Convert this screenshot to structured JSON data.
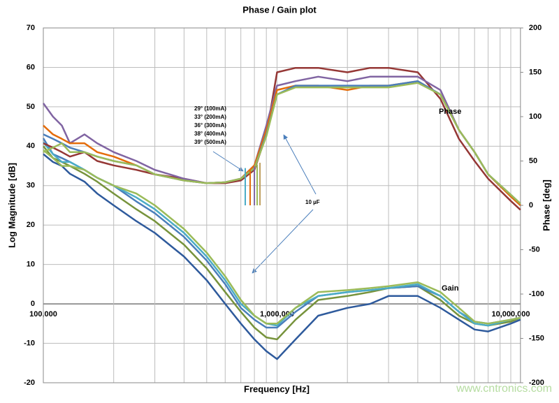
{
  "chart_data": {
    "type": "line",
    "title": "Phase / Gain plot",
    "x_label": "Frequency [Hz]",
    "y_label": "Log Magnitude [dB]",
    "y2_label": "Phase [deg]",
    "log_x": true,
    "grid": true,
    "xlim": [
      100000,
      11000000
    ],
    "xticks": [
      {
        "value": 100000,
        "label": "100,000"
      },
      {
        "value": 1000000,
        "label": "1,000,000"
      },
      {
        "value": 10000000,
        "label": "10,000,000"
      }
    ],
    "xgrid_minor": [
      200000,
      300000,
      400000,
      500000,
      600000,
      700000,
      800000,
      900000,
      2000000,
      3000000,
      4000000,
      5000000,
      6000000,
      7000000,
      8000000,
      9000000
    ],
    "ylim": [
      -20,
      70
    ],
    "yticks": [
      -20,
      -10,
      0,
      10,
      20,
      30,
      40,
      50,
      60,
      70
    ],
    "y2lim": [
      -200,
      200
    ],
    "y2ticks": [
      -200,
      -150,
      -100,
      -50,
      0,
      50,
      100,
      150,
      200
    ],
    "x": [
      100000,
      110000,
      120000,
      130000,
      150000,
      170000,
      200000,
      250000,
      300000,
      400000,
      500000,
      600000,
      700000,
      800000,
      900000,
      1000000,
      1200000,
      1500000,
      2000000,
      2500000,
      3000000,
      4000000,
      5000000,
      6000000,
      7000000,
      8000000,
      10000000,
      11000000
    ],
    "series": [
      {
        "color": "#2e5a9c",
        "values": [
          38,
          36,
          35,
          33,
          31,
          28,
          25,
          21,
          18,
          12,
          6,
          0,
          -5,
          -9,
          -12,
          -14,
          -9,
          -3,
          -1,
          0,
          2,
          2,
          -1,
          -4,
          -6.5,
          -7,
          -5,
          -4
        ]
      },
      {
        "color": "#77933c",
        "values": [
          40,
          37,
          36,
          35,
          33,
          31,
          28,
          24,
          21,
          15,
          9,
          3,
          -2,
          -6,
          -8.5,
          -9,
          -4,
          1,
          2,
          3,
          4,
          4.5,
          1,
          -3,
          -5,
          -5.5,
          -4.5,
          -3.5
        ]
      },
      {
        "color": "#4a7ebb",
        "values": [
          42,
          38,
          37,
          36,
          34,
          32,
          30,
          26,
          23,
          17,
          11,
          5,
          -1,
          -4,
          -6,
          -6,
          -2,
          2,
          3,
          3.5,
          4,
          4.5,
          2,
          -2,
          -4.5,
          -5,
          -4,
          -3.5
        ]
      },
      {
        "color": "#4bacc6",
        "values": [
          41,
          38,
          36,
          36,
          34,
          32,
          30,
          27,
          24,
          18,
          12,
          6,
          0,
          -3,
          -5,
          -5.5,
          -1,
          2,
          3,
          3.5,
          4,
          5,
          2,
          -2,
          -5,
          -5.5,
          -4,
          -3.5
        ]
      },
      {
        "color": "#9bbb59",
        "values": [
          39,
          37,
          35,
          35,
          34,
          32,
          30,
          28,
          25,
          19,
          13,
          7,
          1,
          -3,
          -5,
          -5,
          -1,
          3,
          3.5,
          4,
          4.5,
          5.5,
          3,
          -1,
          -4.5,
          -5,
          -4,
          -3.5
        ]
      },
      {
        "color": "#953735",
        "axis": "y2",
        "values": [
          70,
          65,
          60,
          55,
          60,
          50,
          45,
          40,
          35,
          30,
          25,
          25,
          28,
          40,
          80,
          150,
          155,
          155,
          150,
          155,
          155,
          150,
          120,
          75,
          50,
          30,
          5,
          -5
        ]
      },
      {
        "color": "#8064a2",
        "axis": "y2",
        "values": [
          115,
          100,
          90,
          70,
          80,
          70,
          60,
          50,
          40,
          30,
          25,
          26,
          30,
          45,
          90,
          135,
          140,
          145,
          140,
          145,
          145,
          145,
          130,
          85,
          60,
          35,
          10,
          0
        ]
      },
      {
        "color": "#e46c0a",
        "axis": "y2",
        "values": [
          90,
          80,
          75,
          70,
          70,
          60,
          55,
          45,
          35,
          28,
          25,
          26,
          30,
          45,
          85,
          130,
          135,
          135,
          130,
          135,
          135,
          140,
          125,
          85,
          60,
          35,
          10,
          0
        ]
      },
      {
        "color": "#4a7ebb",
        "axis": "y2",
        "values": [
          80,
          75,
          70,
          65,
          60,
          55,
          50,
          45,
          35,
          28,
          25,
          26,
          30,
          42,
          80,
          125,
          135,
          135,
          135,
          135,
          135,
          140,
          125,
          85,
          60,
          35,
          12,
          2
        ]
      },
      {
        "color": "#9bbb59",
        "axis": "y2",
        "values": [
          60,
          65,
          70,
          60,
          60,
          55,
          50,
          45,
          35,
          28,
          25,
          26,
          30,
          42,
          78,
          125,
          133,
          133,
          133,
          133,
          133,
          138,
          125,
          85,
          60,
          35,
          12,
          2
        ]
      }
    ],
    "crossover_markers": {
      "x": [
        731000,
        767000,
        800000,
        822000,
        845000
      ],
      "phase": [
        42,
        40,
        44,
        46,
        48
      ],
      "colors": [
        "#4bacc6",
        "#e46c0a",
        "#8064a2",
        "#9bbb59",
        "#c0a060"
      ]
    },
    "annotations": [
      "29° (100mA)",
      "33° (200mA)",
      "36° (300mA)",
      "38° (400mA)",
      "39° (500mA)",
      "10 µF",
      "Phase",
      "Gain"
    ],
    "watermark": "www.cntronics.com"
  }
}
